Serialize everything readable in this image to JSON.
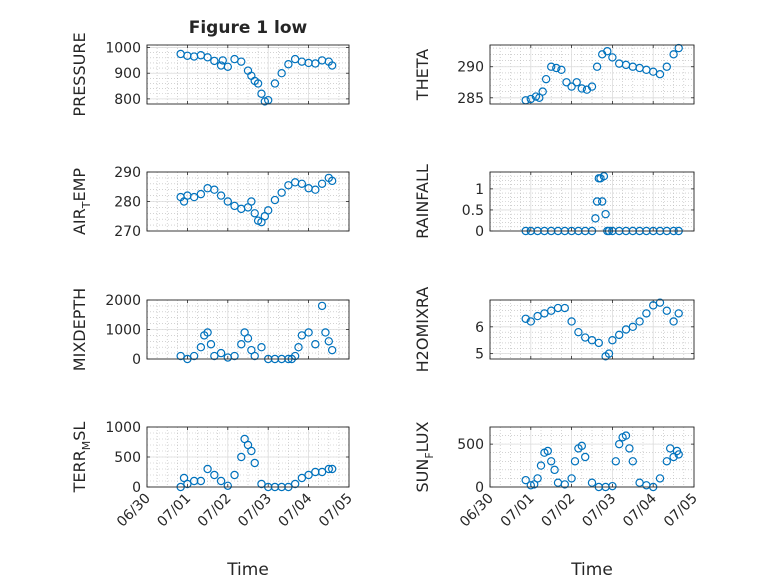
{
  "figure": {
    "title": "Figure 1 low"
  },
  "colors": {
    "marker": "#0072BD",
    "axis": "#262626",
    "grid": "#dcdcdc",
    "minor_grid": "#b8b8b8"
  },
  "chart_data": [
    {
      "id": "pressure",
      "type": "scatter",
      "title": "Figure 1 low",
      "ylabel": "PRESSURE",
      "xlabel": "",
      "xlim": [
        "06/30",
        "07/05"
      ],
      "ylim": [
        780,
        1010
      ],
      "yticks": [
        800,
        900,
        1000
      ],
      "xticks": [],
      "grid": true,
      "minor_grid": true,
      "points": {
        "x": [
          "06/30 20:00",
          "06/31 21:00",
          "07/01 00:00",
          "07/01 04:00",
          "07/01 08:00",
          "07/01 12:00",
          "07/01 16:00",
          "07/01 20:00",
          "07/02 00:00",
          "07/02 04:00",
          "07/02 08:00",
          "07/02 12:00",
          "07/02 14:00",
          "07/02 16:00",
          "07/02 18:00",
          "07/02 20:00",
          "07/02 22:00",
          "07/03 00:00",
          "07/03 04:00",
          "07/03 08:00",
          "07/03 12:00",
          "07/03 16:00",
          "07/03 20:00",
          "07/04 00:00",
          "07/04 04:00",
          "07/04 08:00",
          "07/04 12:00",
          "07/04 14:00"
        ],
        "y": [
          975,
          950,
          968,
          965,
          970,
          962,
          948,
          930,
          925,
          955,
          945,
          910,
          890,
          870,
          860,
          820,
          790,
          795,
          860,
          900,
          935,
          955,
          945,
          940,
          938,
          950,
          945,
          930
        ]
      }
    },
    {
      "id": "theta",
      "type": "scatter",
      "title": "",
      "ylabel": "THETA",
      "xlabel": "",
      "xlim": [
        "06/30",
        "07/05"
      ],
      "ylim": [
        284,
        293.5
      ],
      "yticks": [
        285,
        290
      ],
      "xticks": [],
      "grid": true,
      "minor_grid": true,
      "points": {
        "x": [
          "06/30 21:00",
          "07/01 00:00",
          "07/01 03:00",
          "07/01 05:00",
          "07/01 07:00",
          "07/01 09:00",
          "07/01 12:00",
          "07/01 15:00",
          "07/01 18:00",
          "07/01 21:00",
          "07/02 00:00",
          "07/02 03:00",
          "07/02 06:00",
          "07/02 09:00",
          "07/02 12:00",
          "07/02 15:00",
          "07/02 18:00",
          "07/02 21:00",
          "07/03 00:00",
          "07/03 04:00",
          "07/03 08:00",
          "07/03 12:00",
          "07/03 16:00",
          "07/03 20:00",
          "07/04 00:00",
          "07/04 04:00",
          "07/04 08:00",
          "07/04 12:00",
          "07/04 15:00"
        ],
        "y": [
          284.6,
          284.8,
          285.2,
          285.0,
          286.0,
          288.0,
          290.0,
          289.8,
          289.5,
          287.5,
          286.8,
          287.5,
          286.5,
          286.3,
          286.8,
          290.0,
          292.0,
          292.5,
          291.5,
          290.5,
          290.3,
          290.0,
          289.8,
          289.5,
          289.2,
          288.8,
          290.0,
          292.0,
          293.0
        ]
      }
    },
    {
      "id": "air_temp",
      "type": "scatter",
      "title": "",
      "ylabel": "AIR_TEMP",
      "ylabel_parts": [
        "AIR",
        "T",
        "EMP"
      ],
      "xlabel": "",
      "xlim": [
        "06/30",
        "07/05"
      ],
      "ylim": [
        270,
        290
      ],
      "yticks": [
        270,
        280,
        290
      ],
      "xticks": [],
      "grid": true,
      "minor_grid": true,
      "points": {
        "x": [
          "06/30 20:00",
          "06/30 22:00",
          "07/01 00:00",
          "07/01 04:00",
          "07/01 08:00",
          "07/01 12:00",
          "07/01 16:00",
          "07/01 20:00",
          "07/02 00:00",
          "07/02 04:00",
          "07/02 08:00",
          "07/02 12:00",
          "07/02 14:00",
          "07/02 16:00",
          "07/02 18:00",
          "07/02 20:00",
          "07/02 22:00",
          "07/03 00:00",
          "07/03 04:00",
          "07/03 08:00",
          "07/03 12:00",
          "07/03 16:00",
          "07/03 20:00",
          "07/04 00:00",
          "07/04 04:00",
          "07/04 08:00",
          "07/04 12:00",
          "07/04 14:00"
        ],
        "y": [
          281.5,
          280.0,
          282.0,
          281.5,
          282.5,
          284.5,
          284.0,
          282.0,
          280.0,
          278.5,
          277.5,
          278.0,
          280.0,
          276.0,
          273.5,
          273.0,
          275.0,
          277.0,
          280.5,
          283.0,
          285.5,
          286.5,
          286.0,
          284.5,
          284.0,
          286.0,
          288.0,
          287.0
        ]
      }
    },
    {
      "id": "rainfall",
      "type": "scatter",
      "title": "",
      "ylabel": "RAINFALL",
      "xlabel": "",
      "xlim": [
        "06/30",
        "07/05"
      ],
      "ylim": [
        0,
        1.4
      ],
      "yticks": [
        0,
        0.5,
        1
      ],
      "ytick_labels": [
        "0",
        "0.5",
        "1"
      ],
      "xticks": [],
      "grid": true,
      "minor_grid": true,
      "points": {
        "x": [
          "06/30 21:00",
          "07/01 00:00",
          "07/01 04:00",
          "07/01 08:00",
          "07/01 12:00",
          "07/01 16:00",
          "07/01 20:00",
          "07/02 00:00",
          "07/02 04:00",
          "07/02 08:00",
          "07/02 12:00",
          "07/02 14:00",
          "07/02 15:00",
          "07/02 16:00",
          "07/02 17:00",
          "07/02 18:00",
          "07/02 19:00",
          "07/02 20:00",
          "07/02 21:00",
          "07/02 22:00",
          "07/03 00:00",
          "07/03 04:00",
          "07/03 08:00",
          "07/03 12:00",
          "07/03 16:00",
          "07/03 20:00",
          "07/04 00:00",
          "07/04 04:00",
          "07/04 08:00",
          "07/04 12:00",
          "07/04 15:00"
        ],
        "y": [
          0,
          0,
          0,
          0,
          0,
          0,
          0,
          0,
          0,
          0,
          0,
          0.3,
          0.7,
          1.25,
          1.25,
          0.7,
          1.3,
          0.4,
          0,
          0,
          0,
          0,
          0,
          0,
          0,
          0,
          0,
          0,
          0,
          0,
          0
        ]
      }
    },
    {
      "id": "mixdepth",
      "type": "scatter",
      "title": "",
      "ylabel": "MIXDEPTH",
      "xlabel": "",
      "xlim": [
        "06/30",
        "07/05"
      ],
      "ylim": [
        0,
        2000
      ],
      "yticks": [
        0,
        1000,
        2000
      ],
      "xticks": [],
      "grid": true,
      "minor_grid": true,
      "points": {
        "x": [
          "06/30 20:00",
          "07/01 00:00",
          "07/01 04:00",
          "07/01 08:00",
          "07/01 10:00",
          "07/01 12:00",
          "07/01 14:00",
          "07/01 16:00",
          "07/01 20:00",
          "07/02 00:00",
          "07/02 04:00",
          "07/02 08:00",
          "07/02 10:00",
          "07/02 12:00",
          "07/02 14:00",
          "07/02 16:00",
          "07/02 20:00",
          "07/03 00:00",
          "07/03 04:00",
          "07/03 08:00",
          "07/03 12:00",
          "07/03 14:00",
          "07/03 16:00",
          "07/03 18:00",
          "07/03 20:00",
          "07/04 00:00",
          "07/04 04:00",
          "07/04 08:00",
          "07/04 10:00",
          "07/04 12:00",
          "07/04 14:00"
        ],
        "y": [
          100,
          0,
          100,
          400,
          800,
          900,
          500,
          100,
          200,
          50,
          100,
          500,
          900,
          700,
          300,
          100,
          400,
          0,
          0,
          0,
          0,
          0,
          100,
          400,
          800,
          900,
          500,
          1800,
          900,
          600,
          300
        ]
      }
    },
    {
      "id": "h2omixra",
      "type": "scatter",
      "title": "",
      "ylabel": "H2OMIXRA",
      "xlabel": "",
      "xlim": [
        "06/30",
        "07/05"
      ],
      "ylim": [
        4.8,
        7.0
      ],
      "yticks": [
        5,
        6
      ],
      "xticks": [],
      "grid": true,
      "minor_grid": true,
      "points": {
        "x": [
          "06/30 21:00",
          "07/01 00:00",
          "07/01 04:00",
          "07/01 08:00",
          "07/01 12:00",
          "07/01 16:00",
          "07/01 20:00",
          "07/02 00:00",
          "07/02 04:00",
          "07/02 08:00",
          "07/02 12:00",
          "07/02 16:00",
          "07/02 20:00",
          "07/02 22:00",
          "07/03 00:00",
          "07/03 04:00",
          "07/03 08:00",
          "07/03 12:00",
          "07/03 16:00",
          "07/03 20:00",
          "07/04 00:00",
          "07/04 04:00",
          "07/04 08:00",
          "07/04 12:00",
          "07/04 15:00"
        ],
        "y": [
          6.3,
          6.2,
          6.4,
          6.5,
          6.6,
          6.7,
          6.7,
          6.2,
          5.8,
          5.6,
          5.5,
          5.4,
          4.9,
          5.0,
          5.5,
          5.7,
          5.9,
          6.0,
          6.2,
          6.5,
          6.8,
          6.9,
          6.6,
          6.2,
          6.5
        ]
      }
    },
    {
      "id": "terr_msl",
      "type": "scatter",
      "title": "",
      "ylabel": "TERR_MSL",
      "ylabel_parts": [
        "TERR",
        "M",
        "SL"
      ],
      "xlabel": "Time",
      "xlim": [
        "06/30",
        "07/05"
      ],
      "ylim": [
        0,
        1000
      ],
      "yticks": [
        0,
        500,
        1000
      ],
      "xticks": [
        "06/30",
        "07/01",
        "07/02",
        "07/03",
        "07/04",
        "07/05"
      ],
      "grid": true,
      "minor_grid": true,
      "points": {
        "x": [
          "06/30 20:00",
          "06/30 22:00",
          "07/01 00:00",
          "07/01 04:00",
          "07/01 08:00",
          "07/01 12:00",
          "07/01 16:00",
          "07/01 20:00",
          "07/02 00:00",
          "07/02 04:00",
          "07/02 08:00",
          "07/02 10:00",
          "07/02 12:00",
          "07/02 14:00",
          "07/02 16:00",
          "07/02 20:00",
          "07/03 00:00",
          "07/03 04:00",
          "07/03 08:00",
          "07/03 12:00",
          "07/03 16:00",
          "07/03 20:00",
          "07/04 00:00",
          "07/04 04:00",
          "07/04 08:00",
          "07/04 12:00",
          "07/04 14:00"
        ],
        "y": [
          0,
          150,
          50,
          100,
          100,
          300,
          200,
          100,
          20,
          200,
          500,
          800,
          700,
          600,
          400,
          50,
          0,
          0,
          0,
          0,
          50,
          150,
          200,
          250,
          250,
          300,
          300
        ]
      }
    },
    {
      "id": "sun_flux",
      "type": "scatter",
      "title": "",
      "ylabel": "SUN_FLUX",
      "ylabel_parts": [
        "SUN",
        "F",
        "LUX"
      ],
      "xlabel": "Time",
      "xlim": [
        "06/30",
        "07/05"
      ],
      "ylim": [
        0,
        700
      ],
      "yticks": [
        0,
        500
      ],
      "xticks": [
        "06/30",
        "07/01",
        "07/02",
        "07/03",
        "07/04",
        "07/05"
      ],
      "grid": true,
      "minor_grid": true,
      "points": {
        "x": [
          "06/30 21:00",
          "07/01 00:00",
          "07/01 02:00",
          "07/01 04:00",
          "07/01 06:00",
          "07/01 08:00",
          "07/01 10:00",
          "07/01 12:00",
          "07/01 14:00",
          "07/01 16:00",
          "07/01 20:00",
          "07/02 00:00",
          "07/02 02:00",
          "07/02 04:00",
          "07/02 06:00",
          "07/02 08:00",
          "07/02 12:00",
          "07/02 16:00",
          "07/02 20:00",
          "07/03 00:00",
          "07/03 02:00",
          "07/03 04:00",
          "07/03 06:00",
          "07/03 08:00",
          "07/03 10:00",
          "07/03 12:00",
          "07/03 16:00",
          "07/03 20:00",
          "07/04 00:00",
          "07/04 04:00",
          "07/04 08:00",
          "07/04 10:00",
          "07/04 12:00",
          "07/04 14:00",
          "07/04 15:00"
        ],
        "y": [
          80,
          20,
          30,
          100,
          250,
          400,
          420,
          300,
          200,
          50,
          30,
          100,
          300,
          450,
          480,
          350,
          50,
          0,
          0,
          10,
          300,
          500,
          580,
          600,
          450,
          300,
          50,
          20,
          0,
          100,
          300,
          450,
          350,
          420,
          380
        ]
      }
    }
  ]
}
